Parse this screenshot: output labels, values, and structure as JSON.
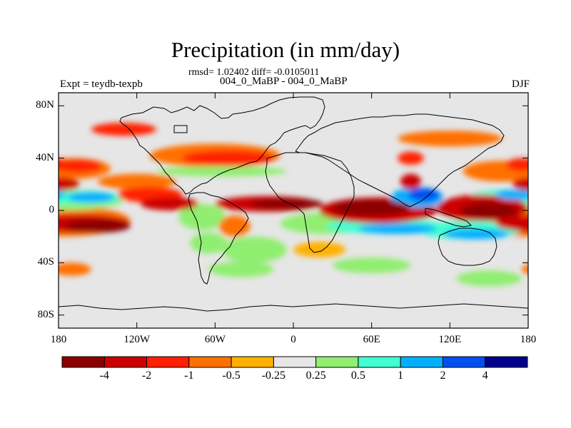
{
  "title": "Precipitation (in mm/day)",
  "stats_line": "rmsd= 1.02402 diff= -0.0105011",
  "comparison_line": "004_0_MaBP - 004_0_MaBP",
  "experiment_label": "Expt = teydb-texpb",
  "season_label": "DJF",
  "y_axis": {
    "ticks": [
      {
        "label": "80N",
        "lat": 80
      },
      {
        "label": "40N",
        "lat": 40
      },
      {
        "label": "0",
        "lat": 0
      },
      {
        "label": "40S",
        "lat": -40
      },
      {
        "label": "80S",
        "lat": -80
      }
    ]
  },
  "x_axis": {
    "ticks": [
      {
        "label": "180",
        "lon": -180
      },
      {
        "label": "120W",
        "lon": -120
      },
      {
        "label": "60W",
        "lon": -60
      },
      {
        "label": "0",
        "lon": 0
      },
      {
        "label": "60E",
        "lon": 60
      },
      {
        "label": "120E",
        "lon": 120
      },
      {
        "label": "180",
        "lon": 180
      }
    ]
  },
  "colorbar": {
    "colors": [
      "#8b0000",
      "#cc0000",
      "#ff2000",
      "#ff7000",
      "#ffb000",
      "#e6e6e6",
      "#90ee70",
      "#40ffd0",
      "#00b0ff",
      "#0050f0",
      "#00008b"
    ],
    "labels": [
      "-4",
      "-2",
      "-1",
      "-0.5",
      "-0.25",
      "0.25",
      "0.5",
      "1",
      "2",
      "4"
    ]
  },
  "chart_data": {
    "type": "heatmap",
    "title": "Precipitation (in mm/day)",
    "lon_range": [
      -180,
      180
    ],
    "lat_range": [
      -90,
      90
    ],
    "levels": [
      -4,
      -2,
      -1,
      -0.5,
      -0.25,
      0.25,
      0.5,
      1,
      2,
      4
    ],
    "features": [
      {
        "name": "tropical-pacific-dry-band",
        "lon": -160,
        "lat": -10,
        "value": -4
      },
      {
        "name": "pacific-itcz-wet",
        "lon": -150,
        "lat": 10,
        "value": 2
      },
      {
        "name": "north-pacific-dry",
        "lon": -165,
        "lat": 30,
        "value": -1
      },
      {
        "name": "north-atlantic-dry",
        "lon": -45,
        "lat": 40,
        "value": -1
      },
      {
        "name": "equatorial-atlantic-dry",
        "lon": -10,
        "lat": 5,
        "value": -2
      },
      {
        "name": "indian-ocean-dry",
        "lon": 60,
        "lat": 0,
        "value": -4
      },
      {
        "name": "indian-ocean-wet-south",
        "lon": 70,
        "lat": -12,
        "value": 2
      },
      {
        "name": "maritime-continent-wet",
        "lon": 100,
        "lat": 10,
        "value": 4
      },
      {
        "name": "west-pacific-dry",
        "lon": 145,
        "lat": 0,
        "value": -4
      },
      {
        "name": "south-pacific-wet",
        "lon": 135,
        "lat": -15,
        "value": 2
      }
    ]
  }
}
